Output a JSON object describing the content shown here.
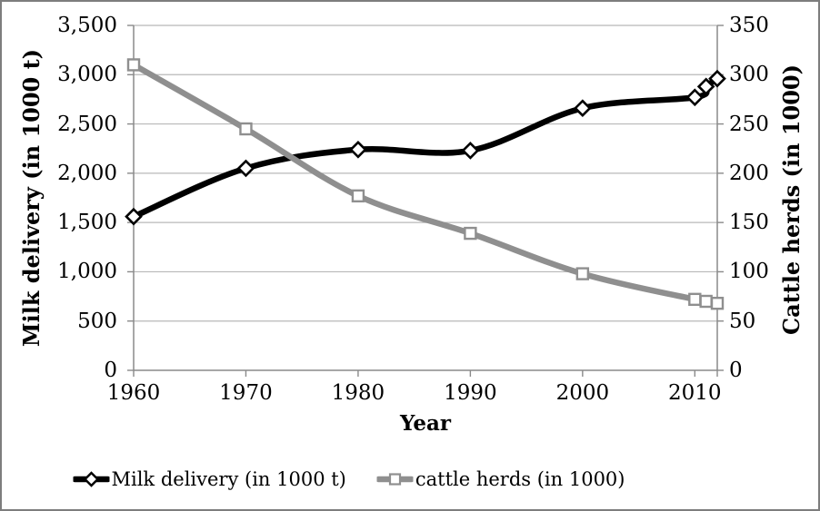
{
  "chart_data": {
    "type": "line",
    "title": "",
    "x_label": "Year",
    "x_range": [
      1960,
      2012
    ],
    "grid": true,
    "legend_position": "bottom",
    "x_ticks": [
      {
        "value": 1960,
        "label": "1960"
      },
      {
        "value": 1970,
        "label": "1970"
      },
      {
        "value": 1980,
        "label": "1980"
      },
      {
        "value": 1990,
        "label": "1990"
      },
      {
        "value": 2000,
        "label": "2000"
      },
      {
        "value": 2010,
        "label": "2010"
      }
    ],
    "left_axis": {
      "label": "Milk delivery (in 1000 t)",
      "min": 0,
      "max": 3500,
      "step": 500,
      "ticks": [
        {
          "value": 0,
          "label": "0"
        },
        {
          "value": 500,
          "label": "500"
        },
        {
          "value": 1000,
          "label": "1,000"
        },
        {
          "value": 1500,
          "label": "1,500"
        },
        {
          "value": 2000,
          "label": "2,000"
        },
        {
          "value": 2500,
          "label": "2,500"
        },
        {
          "value": 3000,
          "label": "3,000"
        },
        {
          "value": 3500,
          "label": "3,500"
        }
      ]
    },
    "right_axis": {
      "label": "Cattle herds (in 1000)",
      "min": 0,
      "max": 350,
      "step": 50,
      "ticks": [
        {
          "value": 0,
          "label": "0"
        },
        {
          "value": 50,
          "label": "50"
        },
        {
          "value": 100,
          "label": "100"
        },
        {
          "value": 150,
          "label": "150"
        },
        {
          "value": 200,
          "label": "200"
        },
        {
          "value": 250,
          "label": "250"
        },
        {
          "value": 300,
          "label": "300"
        },
        {
          "value": 350,
          "label": "350"
        }
      ]
    },
    "series": [
      {
        "name": "Milk delivery (in 1000 t)",
        "axis": "left",
        "color": "#000000",
        "marker": "diamond",
        "smooth": true,
        "x": [
          1960,
          1970,
          1980,
          1990,
          2000,
          2010,
          2011,
          2012
        ],
        "values": [
          1560,
          2050,
          2240,
          2230,
          2660,
          2770,
          2880,
          2960
        ]
      },
      {
        "name": "cattle herds (in 1000)",
        "axis": "right",
        "color": "#8f8f8f",
        "marker": "square",
        "smooth": true,
        "x": [
          1960,
          1970,
          1980,
          1990,
          2000,
          2010,
          2011,
          2012
        ],
        "values": [
          310,
          245,
          177,
          139,
          98,
          72,
          70,
          68
        ]
      }
    ],
    "colors": {
      "grid": "#b8b8b8",
      "axis": "#8a8a8a",
      "text": "#000000",
      "border": "#7d7d7d",
      "background": "#ffffff",
      "marker_fill": "#ffffff"
    }
  }
}
